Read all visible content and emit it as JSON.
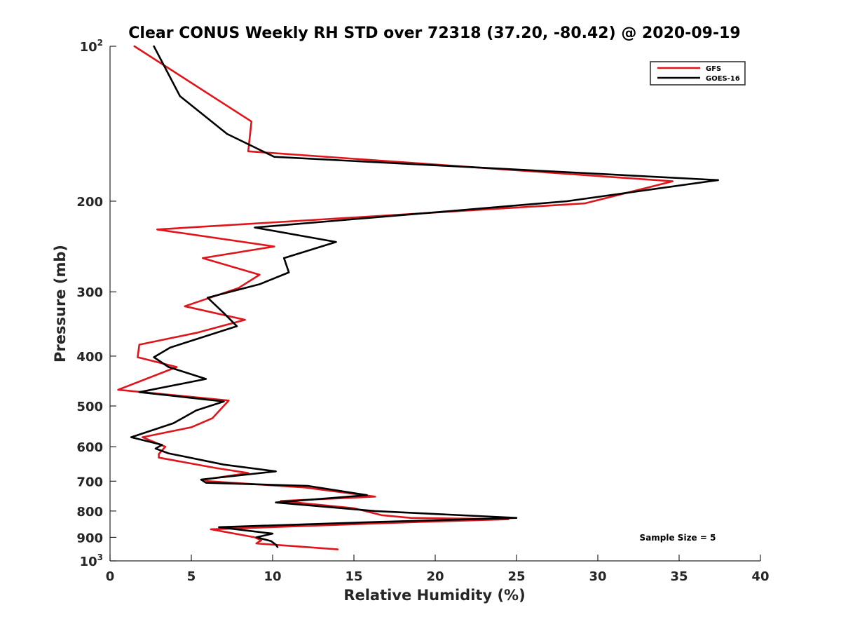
{
  "chart_data": {
    "type": "line",
    "title": "Clear CONUS Weekly RH STD over 72318 (37.20, -80.42) @ 2020-09-19",
    "xlabel": "Relative Humidity (%)",
    "ylabel": "Pressure (mb)",
    "xlim": [
      0,
      40
    ],
    "ylim": [
      100,
      1000
    ],
    "y_scale": "log",
    "y_reversed": true,
    "grid": false,
    "legend_position": "top-right",
    "x_ticks": [
      0,
      5,
      10,
      15,
      20,
      25,
      30,
      35,
      40
    ],
    "x_tick_labels": [
      "0",
      "5",
      "10",
      "15",
      "20",
      "25",
      "30",
      "35",
      "40"
    ],
    "y_ticks": [
      200,
      300,
      400,
      500,
      600,
      700,
      800,
      900
    ],
    "y_tick_labels": [
      "200",
      "300",
      "400",
      "500",
      "600",
      "700",
      "800",
      "900"
    ],
    "y_ticks_power": [
      {
        "value": 100,
        "base": "10",
        "exp": "2"
      },
      {
        "value": 1000,
        "base": "10",
        "exp": "3"
      }
    ],
    "annotation": "Sample Size = 5",
    "series": [
      {
        "name": "GFS",
        "color": "#e0151b",
        "x": [
          1.5,
          8.7,
          8.5,
          34.6,
          29.2,
          2.9,
          10.1,
          5.7,
          9.2,
          7.9,
          4.6,
          8.3,
          5.4,
          1.8,
          1.7,
          4.1,
          0.5,
          7.3,
          6.3,
          5.0,
          2.0,
          3.4,
          3.0,
          3.0,
          6.5,
          8.5,
          5.8,
          6.0,
          12.0,
          16.3,
          10.5,
          15.0,
          16.7,
          18.5,
          24.5,
          19.0,
          6.2,
          8.9,
          9.3,
          9.0,
          14.0
        ],
        "y": [
          100,
          140,
          160,
          183,
          202,
          227,
          245,
          258,
          278,
          295,
          320,
          340,
          360,
          380,
          402,
          420,
          465,
          488,
          528,
          550,
          575,
          600,
          620,
          630,
          660,
          675,
          695,
          700,
          720,
          750,
          765,
          790,
          815,
          825,
          830,
          840,
          868,
          900,
          912,
          925,
          950
        ]
      },
      {
        "name": "GOES-16",
        "color": "#000000",
        "x": [
          2.7,
          4.3,
          7.2,
          10.1,
          37.4,
          28.1,
          8.9,
          13.9,
          10.7,
          11.0,
          9.2,
          6.0,
          7.0,
          7.8,
          3.7,
          2.7,
          3.6,
          5.9,
          1.8,
          7.0,
          5.3,
          3.9,
          1.3,
          3.2,
          2.8,
          3.6,
          7.0,
          10.2,
          5.6,
          5.9,
          12.2,
          15.8,
          10.2,
          16.3,
          25.0,
          16.5,
          6.7,
          10.0,
          9.0,
          9.9,
          10.2,
          10.3
        ],
        "y": [
          100,
          125,
          148,
          164,
          182,
          200,
          225,
          240,
          258,
          275,
          290,
          308,
          330,
          350,
          385,
          402,
          420,
          443,
          470,
          490,
          510,
          540,
          575,
          595,
          605,
          618,
          650,
          670,
          695,
          705,
          715,
          745,
          770,
          800,
          825,
          840,
          860,
          885,
          900,
          915,
          930,
          940
        ]
      }
    ]
  }
}
